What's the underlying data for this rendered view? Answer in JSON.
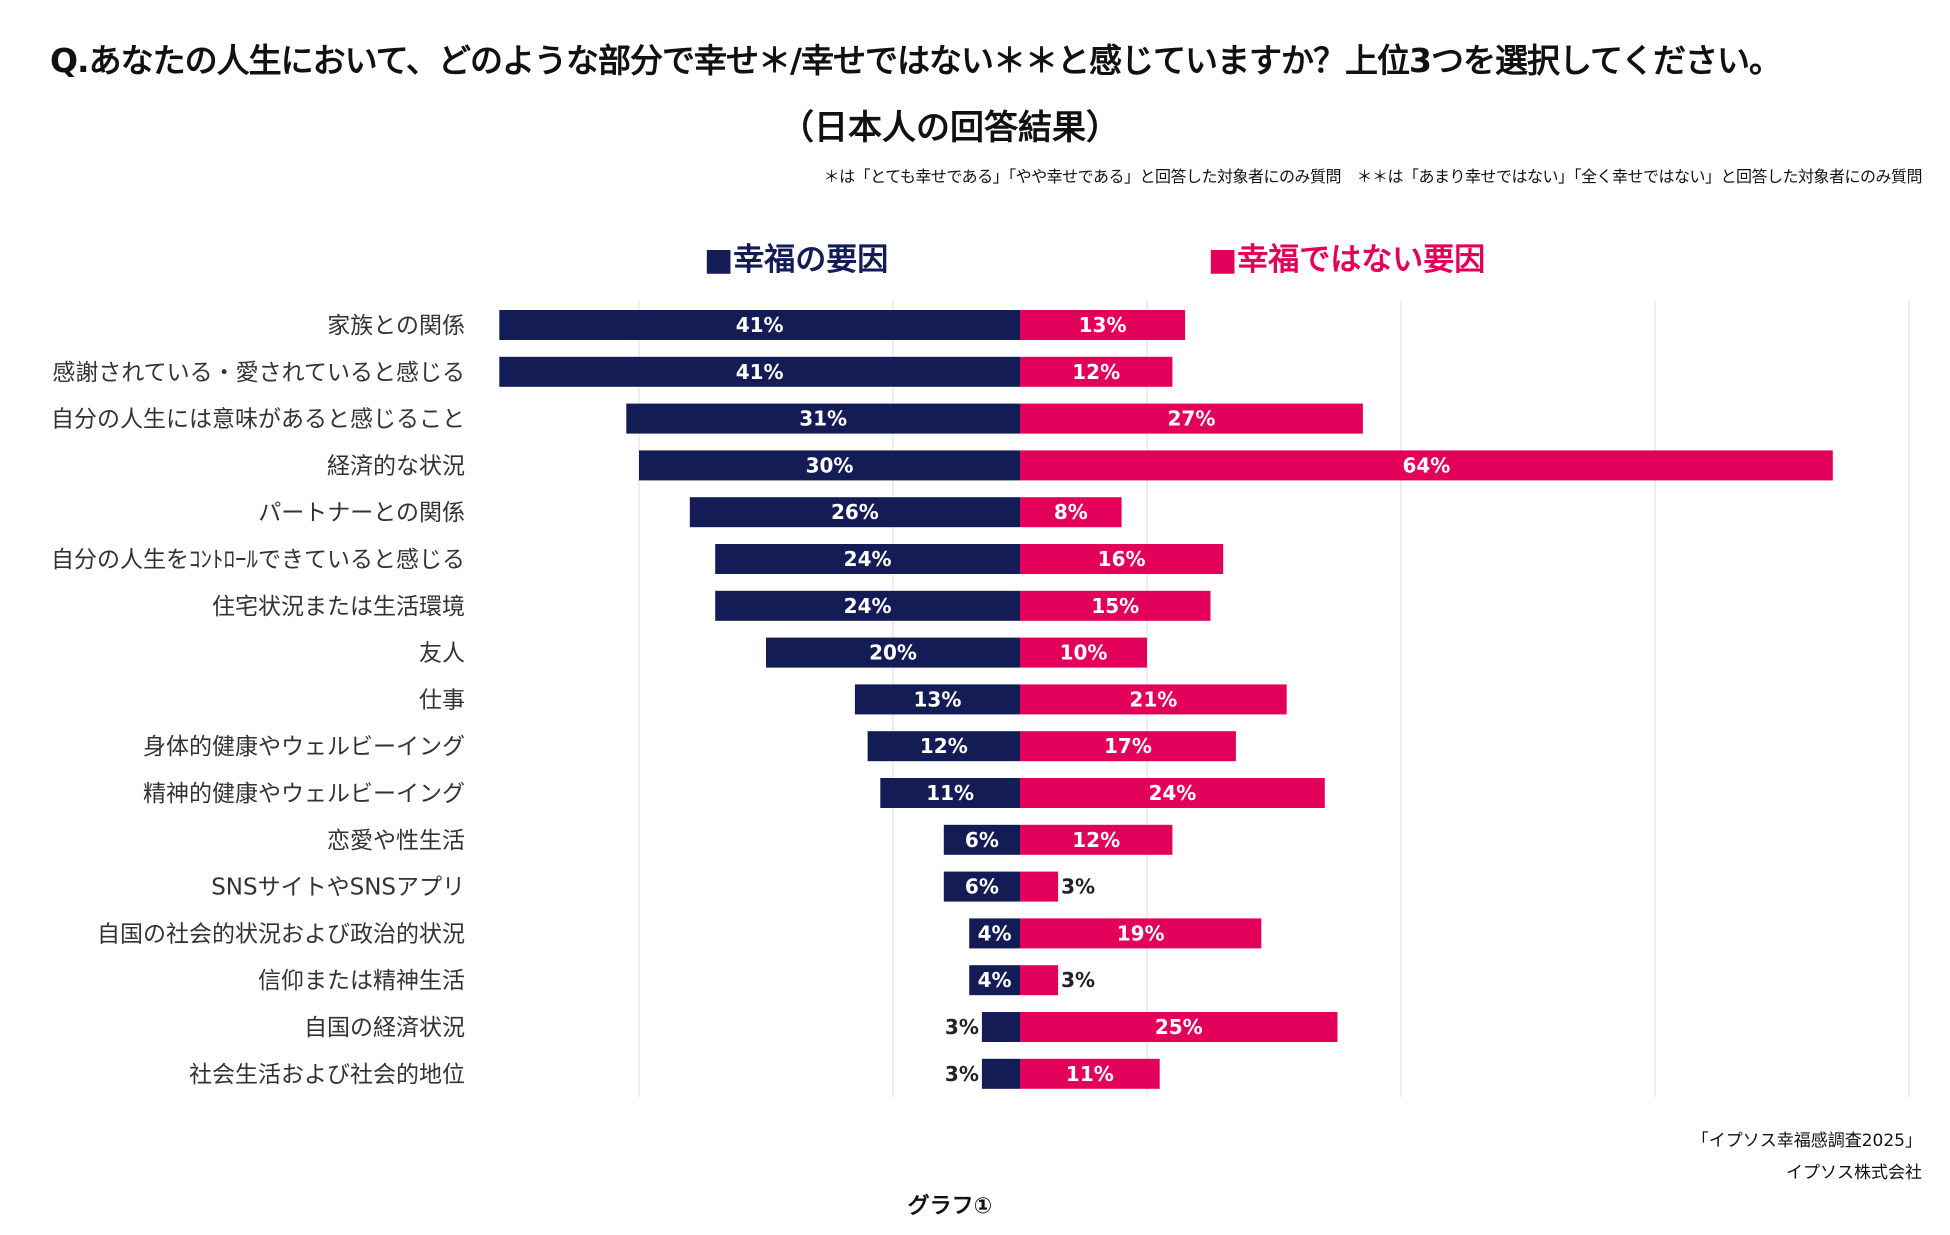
{
  "header": {
    "title": "Q.あなたの人生において、どのような部分で幸せ＊/幸せではない＊＊と感じていますか？上位3つを選択してください。",
    "subtitle": "（日本人の回答結果）",
    "note": "＊は「とても幸せである」「やや幸せである」と回答した対象者にのみ質問　＊＊は「あまり幸せではない」「全く幸せではない」と回答した対象者にのみ質問"
  },
  "chart_data": {
    "type": "bar",
    "orientation": "horizontal-diverging",
    "categories": [
      "家族との関係",
      "感謝されている・愛されていると感じる",
      "自分の人生には意味があると感じること",
      "経済的な状況",
      "パートナーとの関係",
      "自分の人生をｺﾝﾄﾛｰﾙできていると感じる",
      "住宅状況または生活環境",
      "友人",
      "仕事",
      "身体的健康やウェルビーイング",
      "精神的健康やウェルビーイング",
      "恋愛や性生活",
      "SNSサイトやSNSアプリ",
      "自国の社会的状況および政治的状況",
      "信仰または精神生活",
      "自国の経済状況",
      "社会生活および社会的地位"
    ],
    "series": [
      {
        "name": "■幸福の要因",
        "color": "#141c55",
        "direction": "left",
        "values": [
          41,
          41,
          31,
          30,
          26,
          24,
          24,
          20,
          13,
          12,
          11,
          6,
          6,
          4,
          4,
          3,
          3
        ]
      },
      {
        "name": "■幸福ではない要因",
        "color": "#e2005a",
        "direction": "right",
        "values": [
          13,
          12,
          27,
          64,
          8,
          16,
          15,
          10,
          21,
          17,
          24,
          12,
          3,
          19,
          3,
          25,
          11
        ]
      }
    ],
    "unit": "%",
    "grid": true,
    "gridlines": [
      -30,
      -10,
      10,
      30,
      50,
      70
    ],
    "legend_position": "top"
  },
  "footer": {
    "source": "「イプソス幸福感調査2025」",
    "company": "イプソス株式会社",
    "figure_label": "グラフ①"
  }
}
